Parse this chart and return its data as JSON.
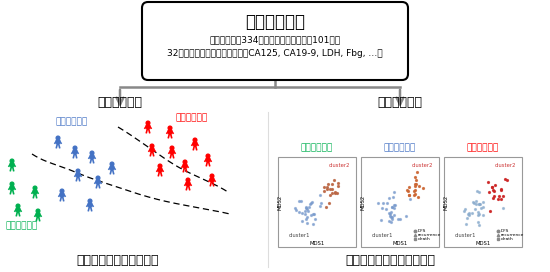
{
  "title_main": "術前血液検査",
  "subtitle1": "卵巣がん患者334名、良性卵巣腫瘍患者101名の",
  "subtitle2": "32種類の術前血液検査データ（CA125, CA19-9, LDH, Fbg, …）",
  "label_supervised": "教師あり学習",
  "label_unsupervised": "教師なし学習",
  "label_bottom_left": "既存の分類の境界を学習",
  "label_bottom_right": "新たな疾患分類を見つける",
  "label_early": "早期卵巣がん",
  "label_advanced": "進行卵巣がん",
  "label_benign": "良性卵巣腫瘍",
  "label_benign2": "良性卵巣腫瘍",
  "label_early2": "早期卵巣がん",
  "label_advanced2": "進行卵巣がん",
  "color_early": "#4472C4",
  "color_advanced": "#FF0000",
  "color_benign": "#00B050",
  "color_gray": "#808080",
  "bg_color": "#FFFFFF"
}
